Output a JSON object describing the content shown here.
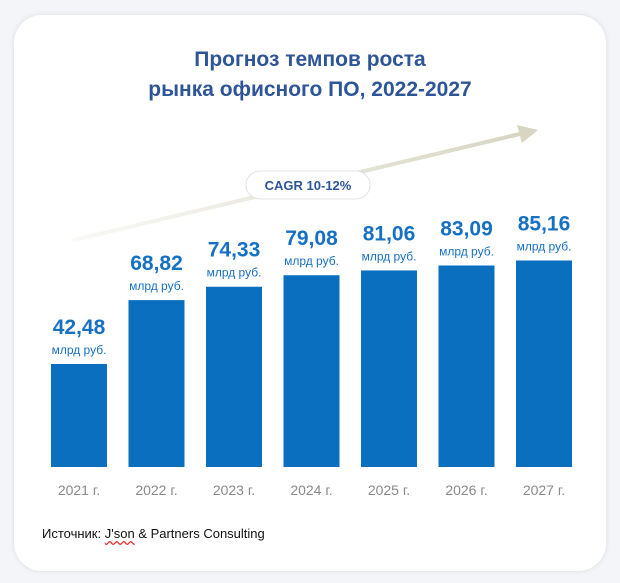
{
  "header": {
    "title_line1": "Прогноз темпов роста",
    "title_line2": "рынка офисного ПО, 2022-2027"
  },
  "cagr_label": "CAGR 10-12%",
  "source": {
    "prefix": "Источник: ",
    "brand": "J'son",
    "rest": " & Partners Consulting"
  },
  "colors": {
    "bar": "#0a6fbf",
    "value_text": "#1670c3",
    "axis_text": "#8a8a8a",
    "title": "#2e5597",
    "arrow": "#d8d6c2"
  },
  "chart_data": {
    "type": "bar",
    "categories": [
      "2021 г.",
      "2022 г.",
      "2023 г.",
      "2024 г.",
      "2025 г.",
      "2026 г.",
      "2027 г."
    ],
    "values": [
      42.48,
      68.82,
      74.33,
      79.08,
      81.06,
      83.09,
      85.16
    ],
    "value_labels": [
      "42,48",
      "68,82",
      "74,33",
      "79,08",
      "81,06",
      "83,09",
      "85,16"
    ],
    "unit_label": "млрд руб.",
    "annotation": "CAGR 10-12%",
    "grid": false,
    "legend": "none"
  }
}
